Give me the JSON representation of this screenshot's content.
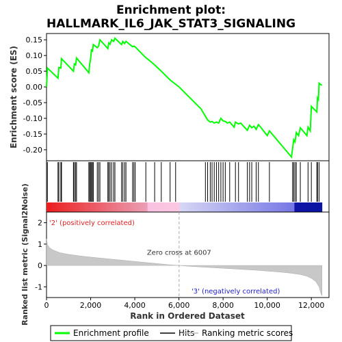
{
  "chart_data": {
    "type": "line",
    "title_line1": "Enrichment plot:",
    "title_line2": "HALLMARK_IL6_JAK_STAT3_SIGNALING",
    "top_panel": {
      "ylabel": "Enrichment score (ES)",
      "ylim": [
        -0.235,
        0.17
      ],
      "yticks": [
        0.15,
        0.1,
        0.05,
        0.0,
        -0.05,
        -0.1,
        -0.15,
        -0.2
      ],
      "ytick_labels": [
        "0.15",
        "0.10",
        "0.05",
        "0.00",
        "-0.05",
        "-0.10",
        "-0.15",
        "-0.20"
      ],
      "xlim": [
        0,
        12800
      ],
      "series_name": "Enrichment profile",
      "color": "#00ff00",
      "points": [
        [
          0,
          0.0
        ],
        [
          40,
          0.06
        ],
        [
          520,
          0.028
        ],
        [
          560,
          0.062
        ],
        [
          650,
          0.06
        ],
        [
          680,
          0.09
        ],
        [
          1220,
          0.05
        ],
        [
          1260,
          0.073
        ],
        [
          1320,
          0.07
        ],
        [
          1360,
          0.092
        ],
        [
          1920,
          0.045
        ],
        [
          1950,
          0.07
        ],
        [
          2000,
          0.09
        ],
        [
          2040,
          0.12
        ],
        [
          2080,
          0.112
        ],
        [
          2120,
          0.135
        ],
        [
          2300,
          0.125
        ],
        [
          2360,
          0.13
        ],
        [
          2420,
          0.15
        ],
        [
          2780,
          0.122
        ],
        [
          2820,
          0.14
        ],
        [
          2880,
          0.136
        ],
        [
          2950,
          0.15
        ],
        [
          3040,
          0.145
        ],
        [
          3100,
          0.155
        ],
        [
          3400,
          0.135
        ],
        [
          3460,
          0.145
        ],
        [
          3540,
          0.138
        ],
        [
          3600,
          0.145
        ],
        [
          3900,
          0.128
        ],
        [
          3960,
          0.13
        ],
        [
          4020,
          0.127
        ],
        [
          4500,
          0.093
        ],
        [
          4600,
          0.088
        ],
        [
          4900,
          0.07
        ],
        [
          5200,
          0.05
        ],
        [
          5600,
          0.022
        ],
        [
          6007,
          0.0
        ],
        [
          6500,
          -0.035
        ],
        [
          7000,
          -0.07
        ],
        [
          7300,
          -0.105
        ],
        [
          7420,
          -0.112
        ],
        [
          7500,
          -0.11
        ],
        [
          7600,
          -0.115
        ],
        [
          7700,
          -0.112
        ],
        [
          7800,
          -0.115
        ],
        [
          7900,
          -0.1
        ],
        [
          8000,
          -0.108
        ],
        [
          8100,
          -0.11
        ],
        [
          8200,
          -0.115
        ],
        [
          8300,
          -0.112
        ],
        [
          8500,
          -0.128
        ],
        [
          8560,
          -0.112
        ],
        [
          8700,
          -0.118
        ],
        [
          8800,
          -0.115
        ],
        [
          9100,
          -0.138
        ],
        [
          9200,
          -0.122
        ],
        [
          9300,
          -0.13
        ],
        [
          9400,
          -0.125
        ],
        [
          9500,
          -0.135
        ],
        [
          9600,
          -0.12
        ],
        [
          9700,
          -0.128
        ],
        [
          10000,
          -0.155
        ],
        [
          10100,
          -0.14
        ],
        [
          11100,
          -0.223
        ],
        [
          11150,
          -0.195
        ],
        [
          11200,
          -0.168
        ],
        [
          11260,
          -0.175
        ],
        [
          11320,
          -0.145
        ],
        [
          11420,
          -0.155
        ],
        [
          11500,
          -0.13
        ],
        [
          11800,
          -0.155
        ],
        [
          11850,
          -0.128
        ],
        [
          11950,
          -0.14
        ],
        [
          12000,
          -0.062
        ],
        [
          12250,
          -0.08
        ],
        [
          12280,
          -0.035
        ],
        [
          12320,
          -0.04
        ],
        [
          12350,
          0.012
        ],
        [
          12420,
          0.008
        ],
        [
          12480,
          0.005
        ]
      ]
    },
    "hits_panel": {
      "series_name": "Hits",
      "positions": [
        40,
        520,
        560,
        650,
        680,
        1220,
        1260,
        1320,
        1360,
        1920,
        1950,
        2000,
        2040,
        2080,
        2120,
        2300,
        2360,
        2420,
        2780,
        2820,
        2880,
        2950,
        3040,
        3100,
        3400,
        3460,
        3540,
        3600,
        3900,
        3960,
        4020,
        4500,
        4900,
        5200,
        5600,
        5850,
        7200,
        7300,
        7420,
        7500,
        7600,
        7700,
        7800,
        7900,
        8000,
        8100,
        8300,
        8560,
        8700,
        9100,
        9200,
        9300,
        9500,
        9600,
        10100,
        11150,
        11200,
        11260,
        11320,
        11500,
        11850,
        12000,
        12250,
        12280,
        12350
      ]
    },
    "ranked_panel": {
      "ylabel": "Ranked list metric (Signal2Noise)",
      "xlabel": "Rank in Ordered Dataset",
      "series_name": "Ranking metric scores",
      "ylim": [
        -1.5,
        2.5
      ],
      "yticks": [
        2,
        1,
        0,
        -1
      ],
      "ytick_labels": [
        "2",
        "1",
        "0",
        "-1"
      ],
      "xticks": [
        0,
        2000,
        4000,
        6000,
        8000,
        10000,
        12000
      ],
      "xtick_labels": [
        "0",
        "2,000",
        "4,000",
        "6,000",
        "8,000",
        "10,000",
        "12,000"
      ],
      "zero_cross_label": "Zero cross at 6007",
      "zero_cross": 6007,
      "pos_label": "'2' (positively correlated)",
      "neg_label": "'3' (negatively correlated)",
      "curve": [
        [
          0,
          1.25
        ],
        [
          50,
          0.95
        ],
        [
          150,
          0.82
        ],
        [
          300,
          0.72
        ],
        [
          600,
          0.6
        ],
        [
          1000,
          0.52
        ],
        [
          1500,
          0.45
        ],
        [
          2000,
          0.39
        ],
        [
          2500,
          0.34
        ],
        [
          3000,
          0.29
        ],
        [
          3500,
          0.24
        ],
        [
          4000,
          0.19
        ],
        [
          4500,
          0.14
        ],
        [
          5000,
          0.09
        ],
        [
          5500,
          0.04
        ],
        [
          6007,
          0.0
        ],
        [
          6500,
          -0.04
        ],
        [
          7000,
          -0.07
        ],
        [
          7500,
          -0.1
        ],
        [
          8000,
          -0.13
        ],
        [
          8500,
          -0.16
        ],
        [
          9000,
          -0.19
        ],
        [
          9500,
          -0.22
        ],
        [
          10000,
          -0.26
        ],
        [
          10500,
          -0.3
        ],
        [
          11000,
          -0.35
        ],
        [
          11500,
          -0.42
        ],
        [
          11800,
          -0.5
        ],
        [
          12000,
          -0.6
        ],
        [
          12200,
          -0.75
        ],
        [
          12350,
          -1.0
        ],
        [
          12430,
          -1.3
        ],
        [
          12480,
          -1.42
        ]
      ]
    },
    "legend": [
      {
        "label": "Enrichment profile",
        "color": "#00ff00"
      },
      {
        "label": "Hits",
        "color": "#000000"
      },
      {
        "label": "Ranking metric scores",
        "color": "#bbbbbb"
      }
    ]
  }
}
